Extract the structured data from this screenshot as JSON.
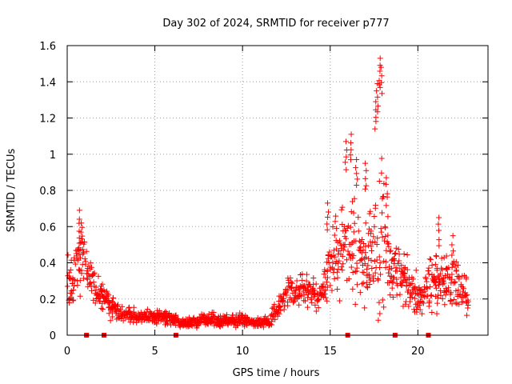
{
  "chart_data": {
    "type": "scatter",
    "title": "Day 302 of 2024, SRMTID for receiver p777",
    "xlabel": "GPS time / hours",
    "ylabel": "SRMTID / TECUs",
    "xlim": [
      0,
      24
    ],
    "ylim": [
      0,
      1.6
    ],
    "xticks": [
      "0",
      "5",
      "10",
      "15",
      "20"
    ],
    "xtick_values": [
      0,
      5,
      10,
      15,
      20
    ],
    "yticks": [
      "0",
      "0.2",
      "0.4",
      "0.6",
      "0.8",
      "1",
      "1.2",
      "1.4",
      "1.6"
    ],
    "ytick_values": [
      0,
      0.2,
      0.4,
      0.6,
      0.8,
      1.0,
      1.2,
      1.4,
      1.6
    ],
    "grid": true,
    "marker": "+",
    "color": "#ff0000",
    "series": [
      {
        "name": "SRMTID",
        "profile": {
          "t": [
            0.0,
            0.3,
            0.6,
            0.9,
            1.2,
            1.5,
            1.8,
            2.2,
            2.6,
            3.0,
            3.5,
            4.0,
            4.5,
            5.0,
            5.5,
            6.0,
            6.5,
            7.0,
            7.5,
            8.0,
            8.5,
            9.0,
            9.5,
            10.0,
            10.5,
            11.0,
            11.5,
            12.0,
            12.5,
            13.0,
            13.5,
            14.0,
            14.5,
            15.0,
            15.5,
            16.0,
            16.5,
            17.0,
            17.5,
            17.8,
            18.0,
            18.3,
            18.6,
            19.0,
            19.5,
            20.0,
            20.5,
            21.0,
            21.5,
            22.0,
            22.5,
            22.9
          ],
          "center": [
            0.28,
            0.32,
            0.4,
            0.46,
            0.34,
            0.28,
            0.22,
            0.2,
            0.15,
            0.12,
            0.11,
            0.1,
            0.1,
            0.1,
            0.1,
            0.09,
            0.07,
            0.07,
            0.08,
            0.09,
            0.08,
            0.08,
            0.08,
            0.08,
            0.07,
            0.07,
            0.08,
            0.15,
            0.22,
            0.24,
            0.26,
            0.23,
            0.22,
            0.4,
            0.45,
            0.5,
            0.48,
            0.4,
            0.45,
            0.55,
            0.62,
            0.4,
            0.35,
            0.3,
            0.28,
            0.2,
            0.25,
            0.3,
            0.3,
            0.32,
            0.25,
            0.2
          ],
          "spread": [
            0.12,
            0.12,
            0.15,
            0.15,
            0.1,
            0.08,
            0.07,
            0.07,
            0.05,
            0.04,
            0.03,
            0.03,
            0.03,
            0.03,
            0.03,
            0.03,
            0.02,
            0.02,
            0.03,
            0.03,
            0.03,
            0.03,
            0.03,
            0.03,
            0.02,
            0.02,
            0.03,
            0.05,
            0.06,
            0.07,
            0.08,
            0.07,
            0.08,
            0.15,
            0.2,
            0.25,
            0.25,
            0.2,
            0.22,
            0.4,
            0.45,
            0.25,
            0.18,
            0.12,
            0.12,
            0.1,
            0.1,
            0.15,
            0.12,
            0.12,
            0.1,
            0.08
          ]
        },
        "peaks": [
          {
            "x": 0.7,
            "y": 0.69
          },
          {
            "x": 0.8,
            "y": 0.62
          },
          {
            "x": 14.85,
            "y": 0.73
          },
          {
            "x": 15.9,
            "y": 1.07
          },
          {
            "x": 16.2,
            "y": 1.11
          },
          {
            "x": 16.5,
            "y": 0.97
          },
          {
            "x": 17.0,
            "y": 0.95
          },
          {
            "x": 17.6,
            "y": 1.29
          },
          {
            "x": 17.7,
            "y": 1.39
          },
          {
            "x": 17.85,
            "y": 1.53
          },
          {
            "x": 17.9,
            "y": 1.48
          },
          {
            "x": 18.2,
            "y": 0.87
          },
          {
            "x": 21.2,
            "y": 0.65
          },
          {
            "x": 22.0,
            "y": 0.55
          }
        ],
        "zero_markers": [
          1.1,
          2.1,
          6.2,
          16.0,
          18.7,
          20.6
        ]
      }
    ]
  }
}
